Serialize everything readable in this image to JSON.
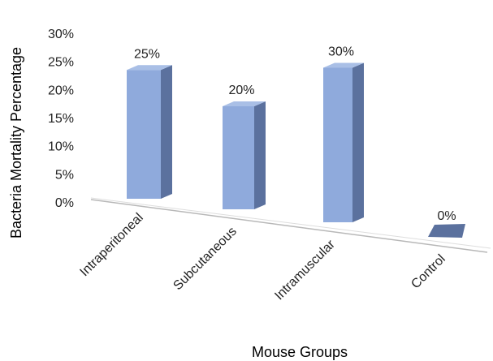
{
  "chart_data": {
    "type": "bar",
    "categories": [
      "Intraperitoneal",
      "Subcutaneous",
      "Intramuscular",
      "Control"
    ],
    "values": [
      25,
      20,
      30,
      0
    ],
    "data_labels": [
      "25%",
      "20%",
      "30%",
      "0%"
    ],
    "xlabel": "Mouse Groups",
    "ylabel": "Bacteria Mortality Percentage",
    "yticks": [
      "0%",
      "5%",
      "10%",
      "15%",
      "20%",
      "25%",
      "30%"
    ],
    "ylim": [
      0,
      30
    ],
    "grid": false,
    "legend": "none",
    "style": "3d-column"
  },
  "colors": {
    "bar_front": "#8faadc",
    "bar_side": "#5b719e",
    "bar_top": "#a9bfe6",
    "axis_line": "#b8b8b8",
    "text": "#222222"
  }
}
